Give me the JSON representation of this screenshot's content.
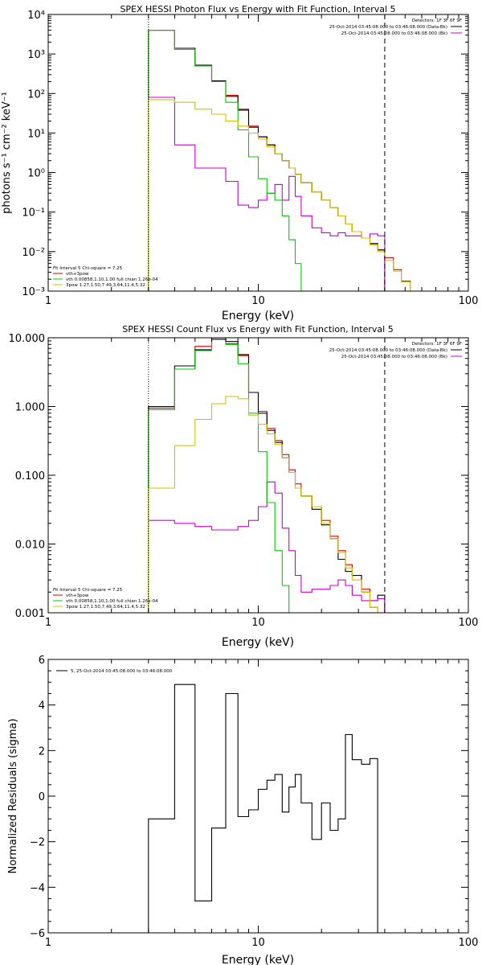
{
  "chart_data": [
    {
      "type": "line",
      "title": "SPEX HESSI Photon Flux vs Energy with Fit Function, Interval 5",
      "xlabel": "Energy (keV)",
      "ylabel": "photons s⁻¹ cm⁻² keV⁻¹",
      "xscale": "log",
      "yscale": "log",
      "xlim": [
        1,
        100
      ],
      "ylim": [
        0.001,
        10000
      ],
      "xticks": [
        {
          "v": 1,
          "label": "1"
        },
        {
          "v": 10,
          "label": "10"
        },
        {
          "v": 100,
          "label": "100"
        }
      ],
      "yticks": [
        {
          "v": 0.001,
          "label": "10⁻³"
        },
        {
          "v": 0.01,
          "label": "10⁻²"
        },
        {
          "v": 0.1,
          "label": "10⁻¹"
        },
        {
          "v": 1,
          "label": "10⁰"
        },
        {
          "v": 10,
          "label": "10¹"
        },
        {
          "v": 100,
          "label": "10²"
        },
        {
          "v": 1000,
          "label": "10³"
        },
        {
          "v": 10000,
          "label": "10⁴"
        }
      ],
      "vlines": [
        {
          "x": 3,
          "style": "dotted"
        },
        {
          "x": 40,
          "style": "dashed"
        }
      ],
      "legend_top": [
        {
          "text": "Detectors: 1F 3F 6F 9F",
          "color": ""
        },
        {
          "text": "25-Oct-2014 03:45:08.000 to 03:46:08.000 (Data-Bk)",
          "color": "#000000"
        },
        {
          "text": "25-Oct-2014 03:45:08.000 to 03:46:08.000 (Bk)",
          "color": "#cc00cc"
        }
      ],
      "legend_bottom": [
        {
          "text": "Fit Interval 5   Chi-square = 7.25",
          "color": ""
        },
        {
          "text": "vth+3pow",
          "color": "#e00000"
        },
        {
          "text": "vth 0.00858,1.10,1.00  full chian 1.26e-04",
          "color": "#00cc00"
        },
        {
          "text": "3pow 1.27,1.50,7.49,3.64,11.4,5.32",
          "color": "#d4c000"
        }
      ],
      "edges": [
        3,
        4,
        5,
        6,
        7,
        8,
        9,
        10,
        11,
        12,
        13,
        14,
        15,
        16,
        18,
        20,
        22,
        24,
        26,
        28,
        31,
        34,
        37,
        40,
        44,
        48,
        53
      ],
      "series": [
        {
          "name": "vth+3pow",
          "color": "#e00000",
          "values": [
            4000,
            1300,
            500,
            200,
            90,
            40,
            15,
            8,
            5,
            3,
            2,
            1.3,
            0.9,
            0.55,
            0.32,
            0.2,
            0.13,
            0.08,
            0.05,
            0.032,
            0.022,
            0.015,
            0.011,
            0.007,
            0.0035,
            0.0018
          ]
        },
        {
          "name": "Data-Bk",
          "color": "#000000",
          "values": [
            4000,
            1400,
            520,
            210,
            85,
            38,
            14,
            8,
            5,
            3,
            2,
            1.3,
            0.9,
            0.55,
            0.32,
            0.2,
            0.13,
            0.08,
            0.05,
            0.032,
            0.022,
            0.016,
            0.011,
            null,
            null,
            null
          ]
        },
        {
          "name": "Bk",
          "color": "#cc00cc",
          "values": [
            80,
            5,
            1.3,
            1.3,
            0.6,
            0.15,
            0.13,
            0.2,
            0.3,
            0.5,
            0.2,
            0.8,
            0.25,
            0.08,
            0.04,
            0.03,
            0.025,
            0.03,
            0.025,
            0.025,
            0.022,
            0.028,
            0.025,
            null,
            null,
            null
          ]
        },
        {
          "name": "vth",
          "color": "#00cc00",
          "values": [
            4000,
            1300,
            500,
            200,
            60,
            12,
            2.5,
            0.7,
            0.3,
            0.2,
            0.08,
            0.02,
            0.005,
            0.001,
            0.0001,
            null,
            null,
            null,
            null,
            null,
            null,
            null,
            null,
            null,
            null,
            null
          ]
        },
        {
          "name": "3pow",
          "color": "#d4c000",
          "values": [
            70,
            60,
            40,
            30,
            20,
            15,
            10,
            7,
            4.5,
            3,
            2,
            1.3,
            0.9,
            0.55,
            0.32,
            0.2,
            0.13,
            0.08,
            0.05,
            0.032,
            0.022,
            0.015,
            0.01,
            0.006,
            0.0032,
            0.0017
          ]
        }
      ]
    },
    {
      "type": "line",
      "title": "SPEX HESSI Count Flux vs Energy with Fit Function, Interval 5",
      "xlabel": "Energy (keV)",
      "ylabel": "",
      "xscale": "log",
      "yscale": "log",
      "xlim": [
        1,
        100
      ],
      "ylim": [
        0.001,
        10
      ],
      "xticks": [
        {
          "v": 1,
          "label": "1"
        },
        {
          "v": 10,
          "label": "10"
        },
        {
          "v": 100,
          "label": "100"
        }
      ],
      "yticks": [
        {
          "v": 0.001,
          "label": "0.001"
        },
        {
          "v": 0.01,
          "label": "0.010"
        },
        {
          "v": 0.1,
          "label": "0.100"
        },
        {
          "v": 1,
          "label": "1.000"
        },
        {
          "v": 10,
          "label": "10.000"
        }
      ],
      "vlines": [
        {
          "x": 3,
          "style": "dotted"
        },
        {
          "x": 40,
          "style": "dashed"
        }
      ],
      "legend_top": [
        {
          "text": "Detectors: 1F 3F 6F 9F",
          "color": ""
        },
        {
          "text": "25-Oct-2014 03:45:08.000 to 03:46:08.000 (Data-Bk)",
          "color": "#000000"
        },
        {
          "text": "25-Oct-2014 03:45:08.000 to 03:46:08.000 (Bk)",
          "color": "#cc00cc"
        }
      ],
      "legend_bottom": [
        {
          "text": "Fit Interval 5   Chi-square = 7.25",
          "color": ""
        },
        {
          "text": "vth+3pow",
          "color": "#e00000"
        },
        {
          "text": "vth 0.00858,1.10,1.00  full chian 1.26e-04",
          "color": "#00cc00"
        },
        {
          "text": "3pow 1.27,1.50,7.49,3.64,11.4,5.32",
          "color": "#d4c000"
        }
      ],
      "edges": [
        3,
        4,
        5,
        6,
        7,
        8,
        9,
        10,
        11,
        12,
        13,
        14,
        15,
        16,
        18,
        20,
        22,
        24,
        26,
        28,
        31,
        34,
        37,
        40
      ],
      "series": [
        {
          "name": "vth+3pow",
          "color": "#e00000",
          "values": [
            0.95,
            3.5,
            7.5,
            10,
            8.2,
            5.5,
            1.6,
            0.85,
            0.48,
            0.32,
            0.2,
            0.12,
            0.075,
            0.05,
            0.035,
            0.022,
            0.013,
            0.008,
            0.005,
            0.0035,
            0.0022,
            0.0012,
            0.0008
          ]
        },
        {
          "name": "Data-Bk",
          "color": "#000000",
          "values": [
            1.0,
            3.9,
            6.7,
            9.5,
            8.8,
            5.7,
            1.6,
            0.8,
            0.45,
            0.3,
            0.18,
            0.11,
            0.065,
            0.05,
            0.032,
            0.019,
            0.012,
            0.006,
            0.004,
            0.0035,
            0.002,
            0.0015,
            0.0018
          ]
        },
        {
          "name": "Bk",
          "color": "#cc00cc",
          "values": [
            0.022,
            0.02,
            0.018,
            0.016,
            0.016,
            0.018,
            0.022,
            0.035,
            0.08,
            0.055,
            0.017,
            0.008,
            0.0035,
            0.002,
            0.0022,
            0.0022,
            0.0025,
            0.003,
            0.0025,
            0.0018,
            0.0015,
            0.0015,
            0.0016
          ]
        },
        {
          "name": "vth",
          "color": "#00cc00",
          "values": [
            0.9,
            3.5,
            6.5,
            10,
            8,
            4.2,
            0.8,
            0.22,
            0.04,
            0.008,
            0.0025,
            0.001,
            0.0003,
            null,
            null,
            null,
            null,
            null,
            null,
            null,
            null,
            null,
            null
          ]
        },
        {
          "name": "3pow",
          "color": "#d4c000",
          "values": [
            0.065,
            0.27,
            0.65,
            1.1,
            1.4,
            1.3,
            0.75,
            0.55,
            0.4,
            0.28,
            0.18,
            0.11,
            0.065,
            0.05,
            0.035,
            0.02,
            0.012,
            0.0075,
            0.0045,
            0.003,
            0.002,
            0.0012,
            0.0008
          ]
        }
      ]
    },
    {
      "type": "line",
      "title": "",
      "xlabel": "Energy (keV)",
      "ylabel": "Normalized Residuals (sigma)",
      "xscale": "log",
      "yscale": "linear",
      "xlim": [
        1,
        100
      ],
      "ylim": [
        -6,
        6
      ],
      "xticks": [
        {
          "v": 1,
          "label": "1"
        },
        {
          "v": 10,
          "label": "10"
        },
        {
          "v": 100,
          "label": "100"
        }
      ],
      "yticks": [
        {
          "v": -6,
          "label": "−6"
        },
        {
          "v": -4,
          "label": "−4"
        },
        {
          "v": -2,
          "label": "−2"
        },
        {
          "v": 0,
          "label": "0"
        },
        {
          "v": 2,
          "label": "2"
        },
        {
          "v": 4,
          "label": "4"
        },
        {
          "v": 6,
          "label": "6"
        }
      ],
      "vlines": [],
      "legend_top": [],
      "legend_bottom": [],
      "legend_left": [
        {
          "text": "5, 25-Oct-2014 03:45:08.000 to 03:46:08.000",
          "color": "#000000"
        }
      ],
      "edges": [
        3,
        4,
        5,
        6,
        7,
        8,
        9,
        10,
        11,
        12,
        13,
        14,
        15,
        16,
        18,
        20,
        22,
        24,
        26,
        28,
        31,
        34,
        37,
        40
      ],
      "series": [
        {
          "name": "5, 25-Oct-2014 03:45:08.000 to 03:46:08.000",
          "color": "#000000",
          "values": [
            -1.0,
            4.9,
            -4.6,
            -1.4,
            4.5,
            -0.9,
            -0.6,
            0.3,
            0.7,
            0.95,
            -0.7,
            0.4,
            0.95,
            -0.3,
            -1.9,
            -0.3,
            -1.5,
            -1.0,
            2.7,
            1.6,
            1.4,
            1.65,
            -6
          ]
        }
      ]
    }
  ]
}
